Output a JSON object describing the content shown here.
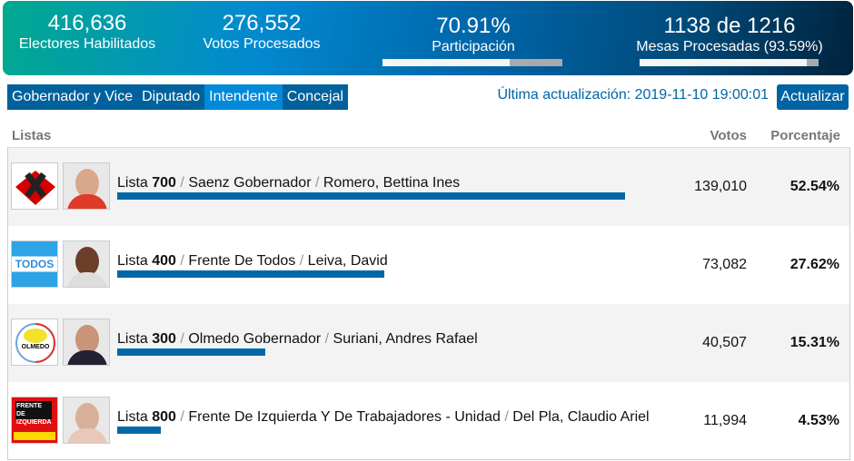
{
  "stats": [
    {
      "value": "416,636",
      "label": "Electores Habilitados"
    },
    {
      "value": "276,552",
      "label": "Votos Procesados"
    },
    {
      "value": "70.91%",
      "label": "Participación",
      "progress": 70.91
    },
    {
      "value": "1138 de 1216",
      "label": "Mesas Procesadas (93.59%)",
      "progress": 93.59
    }
  ],
  "tabs": [
    {
      "label": "Gobernador y Vice",
      "active": false
    },
    {
      "label": "Diputado",
      "active": false
    },
    {
      "label": "Intendente",
      "active": true
    },
    {
      "label": "Concejal",
      "active": false
    }
  ],
  "updated": "Última actualización: 2019-11-10 19:00:01",
  "refresh_label": "Actualizar",
  "columns": {
    "lists": "Listas",
    "votes": "Votos",
    "percent": "Porcentaje"
  },
  "rows": [
    {
      "lista": "Lista",
      "number": "700",
      "party": "Saenz Gobernador",
      "candidate": "Romero, Bettina Ines",
      "votes": "139,010",
      "percent": "52.54%",
      "pct": 52.54
    },
    {
      "lista": "Lista",
      "number": "400",
      "party": "Frente De Todos",
      "candidate": "Leiva, David",
      "votes": "73,082",
      "percent": "27.62%",
      "pct": 27.62,
      "logo_text": "TODOS"
    },
    {
      "lista": "Lista",
      "number": "300",
      "party": "Olmedo Gobernador",
      "candidate": "Suriani, Andres Rafael",
      "votes": "40,507",
      "percent": "15.31%",
      "pct": 15.31,
      "logo_text": "OLMEDO"
    },
    {
      "lista": "Lista",
      "number": "800",
      "party": "Frente De Izquierda Y De Trabajadores - Unidad",
      "candidate": "Del Pla, Claudio Ariel",
      "votes": "11,994",
      "percent": "4.53%",
      "pct": 4.53,
      "logo_text": "FRENTE DE IZQUIERDA"
    }
  ],
  "colors": {
    "bar": "#0068a8",
    "tab": "#00619c",
    "tab_active": "#0289d8"
  },
  "separator": "/"
}
